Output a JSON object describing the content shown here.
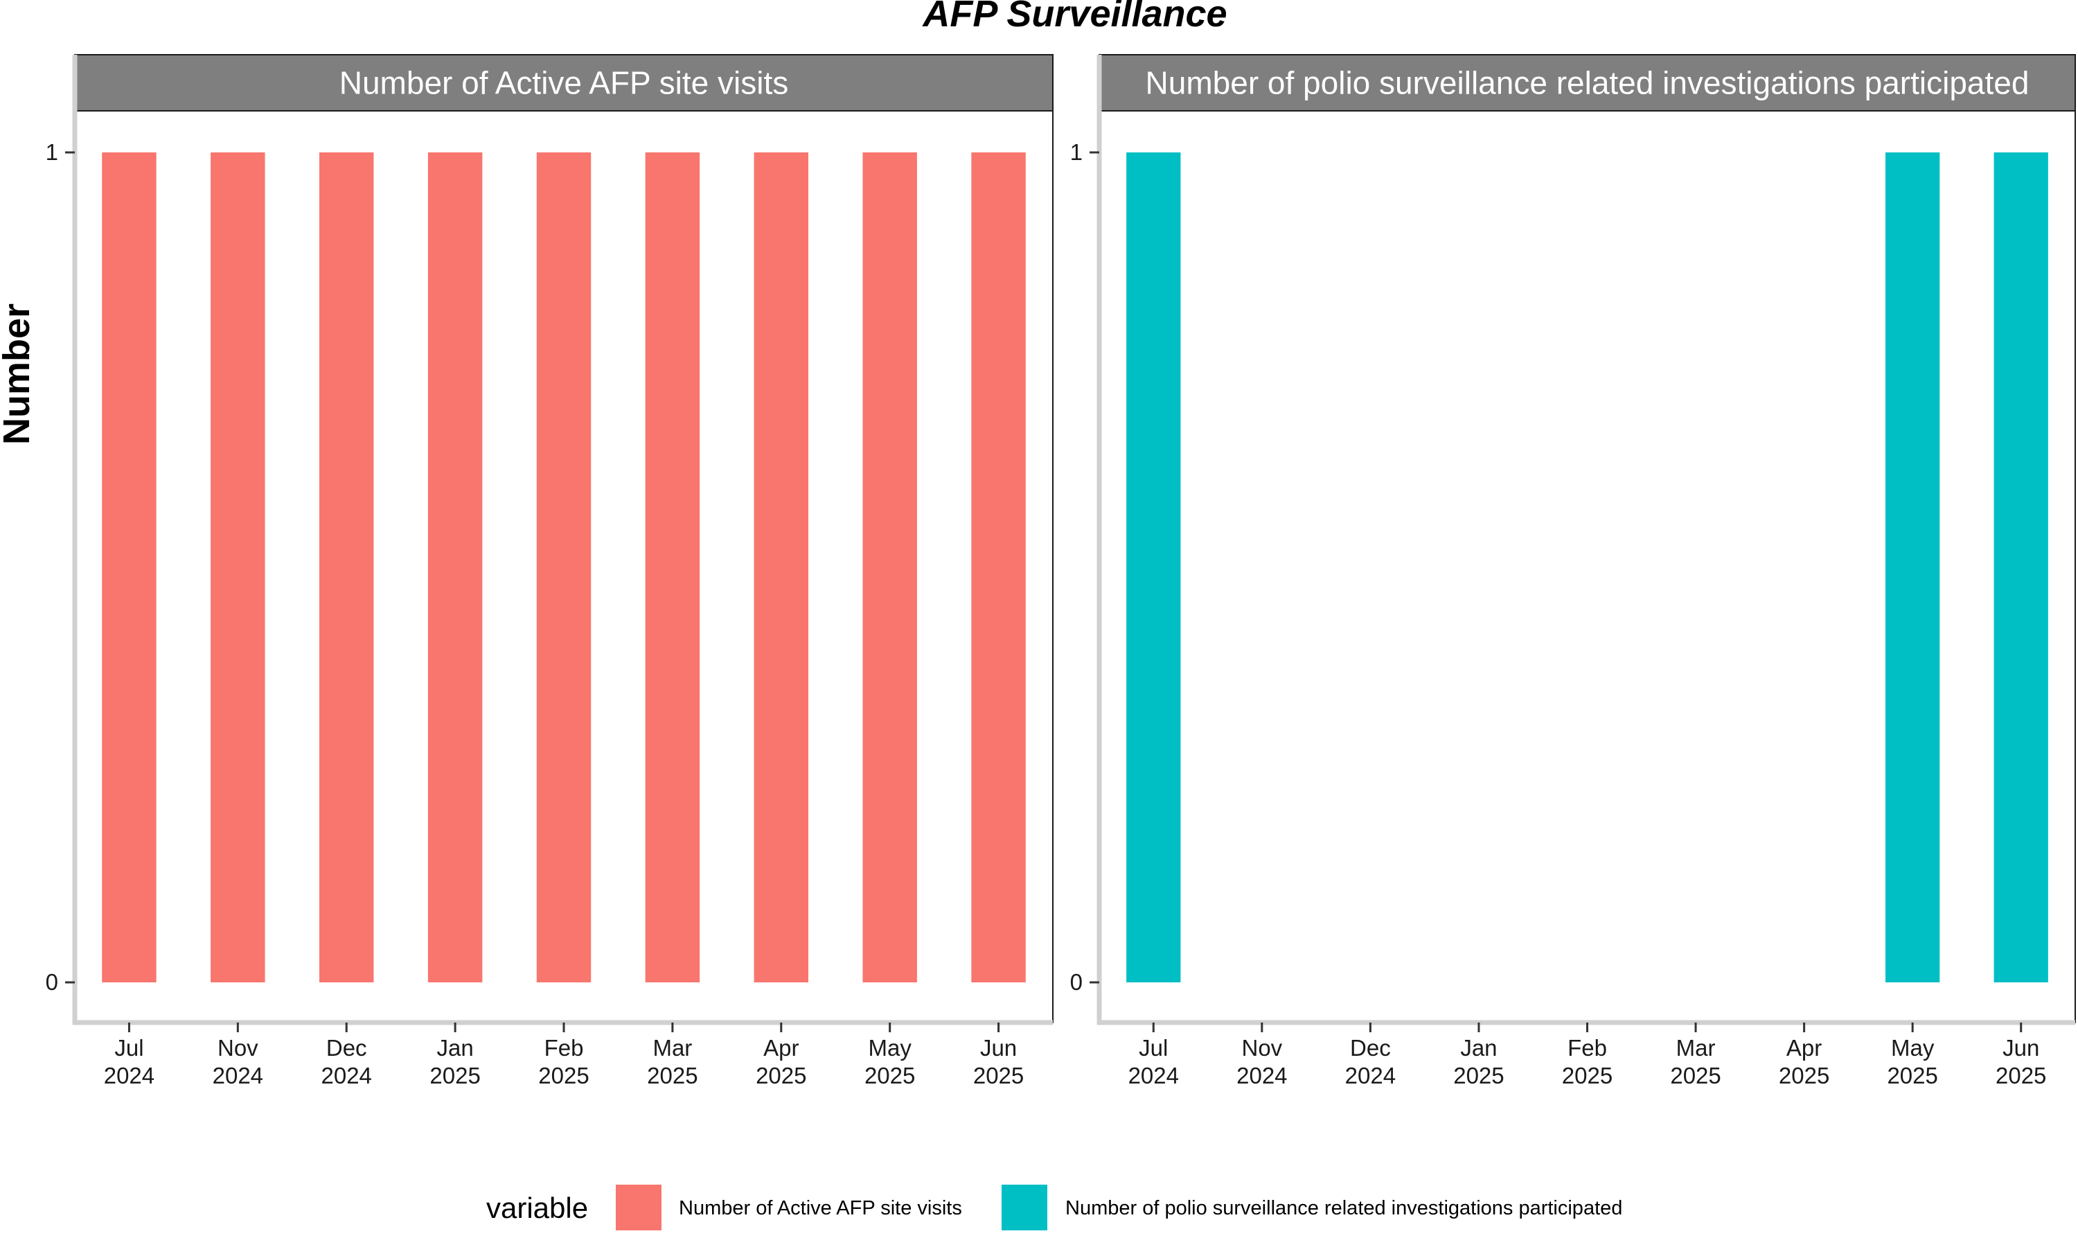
{
  "chart_data": {
    "type": "bar",
    "title": "AFP Surveillance",
    "ylabel": "Number",
    "xlabel": "",
    "ylim": [
      0,
      1
    ],
    "y_ticks": [
      "0",
      "1"
    ],
    "categories": [
      "Jul 2024",
      "Nov 2024",
      "Dec 2024",
      "Jan 2025",
      "Feb 2025",
      "Mar 2025",
      "Apr 2025",
      "May 2025",
      "Jun 2025"
    ],
    "x_tick_labels": [
      [
        "Jul",
        "2024"
      ],
      [
        "Nov",
        "2024"
      ],
      [
        "Dec",
        "2024"
      ],
      [
        "Jan",
        "2025"
      ],
      [
        "Feb",
        "2025"
      ],
      [
        "Mar",
        "2025"
      ],
      [
        "Apr",
        "2025"
      ],
      [
        "May",
        "2025"
      ],
      [
        "Jun",
        "2025"
      ]
    ],
    "facets": [
      {
        "label": "Number of Active AFP site visits",
        "series": "Number of Active AFP site visits",
        "color": "#F8766D",
        "values": [
          1,
          1,
          1,
          1,
          1,
          1,
          1,
          1,
          1
        ]
      },
      {
        "label": "Number of polio surveillance related investigations participated",
        "series": "Number of polio surveillance related investigations participated",
        "color": "#00BFC4",
        "values": [
          1,
          0,
          0,
          0,
          0,
          0,
          0,
          1,
          1
        ]
      }
    ],
    "legend": {
      "title": "variable",
      "position": "bottom",
      "items": [
        {
          "name": "Number of Active AFP site visits",
          "color": "#F8766D"
        },
        {
          "name": "Number of polio surveillance related investigations participated",
          "color": "#00BFC4"
        }
      ]
    },
    "grid": false,
    "strip_color": "#7f7f7f",
    "axis_line_color": "#d0d0d0"
  }
}
